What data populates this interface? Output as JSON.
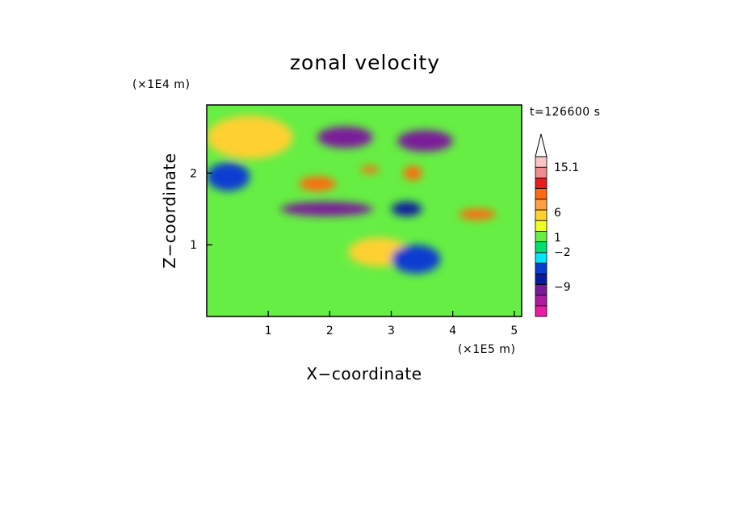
{
  "chart_data": {
    "type": "heatmap",
    "title": "zonal velocity",
    "xlabel": "X−coordinate",
    "ylabel": "Z−coordinate",
    "x_scale_label": "(×1E5 m)",
    "y_scale_label": "(×1E4 m)",
    "time_label": "t=126600 s",
    "xlim": [
      0,
      5.12
    ],
    "ylim": [
      0,
      2.95
    ],
    "x_ticks": [
      "1",
      "2",
      "3",
      "4",
      "5"
    ],
    "x_tick_values": [
      1,
      2,
      3,
      4,
      5
    ],
    "y_ticks": [
      "1",
      "2"
    ],
    "y_tick_values": [
      1,
      2
    ],
    "grid": false,
    "colorbar": {
      "labels": [
        "15.1",
        "6",
        "1",
        "−2",
        "−9"
      ],
      "label_values": [
        15.1,
        6,
        1,
        -2,
        -9
      ],
      "levels": [
        -15,
        -12,
        -9,
        -6,
        -3,
        -2,
        -1,
        0,
        1,
        2,
        4,
        6,
        9,
        12,
        15.1
      ],
      "colors": [
        "#ec1ca4",
        "#b01aa0",
        "#7a1a9a",
        "#0a1aa0",
        "#0a3cd0",
        "#00e6ff",
        "#00e070",
        "#66ee44",
        "#eeff22",
        "#ffd030",
        "#ffa040",
        "#ff6a10",
        "#e81c1c",
        "#f08c8c",
        "#f8c4c4"
      ],
      "extend": "max"
    },
    "bands": [
      {
        "value": 7,
        "x": [
          0.1,
          1.1
        ],
        "z": [
          2.4,
          2.6
        ]
      },
      {
        "value": 3,
        "x": [
          0.0,
          1.4
        ],
        "z": [
          2.2,
          2.8
        ]
      },
      {
        "value": -8,
        "x": [
          1.8,
          2.7
        ],
        "z": [
          2.35,
          2.65
        ]
      },
      {
        "value": -8,
        "x": [
          1.2,
          2.7
        ],
        "z": [
          1.4,
          1.6
        ]
      },
      {
        "value": 7,
        "x": [
          1.5,
          2.1
        ],
        "z": [
          1.75,
          1.95
        ]
      },
      {
        "value": 7,
        "x": [
          2.5,
          2.8
        ],
        "z": [
          2.0,
          2.1
        ]
      },
      {
        "value": -2.5,
        "x": [
          0.0,
          0.7
        ],
        "z": [
          1.75,
          2.15
        ]
      },
      {
        "value": 6,
        "x": [
          3.2,
          3.5
        ],
        "z": [
          1.9,
          2.1
        ]
      },
      {
        "value": -8,
        "x": [
          3.1,
          4.0
        ],
        "z": [
          2.3,
          2.6
        ]
      },
      {
        "value": -5,
        "x": [
          3.0,
          3.5
        ],
        "z": [
          1.4,
          1.6
        ]
      },
      {
        "value": 3,
        "x": [
          2.3,
          3.3
        ],
        "z": [
          0.7,
          1.1
        ]
      },
      {
        "value": 0.5,
        "x": [
          0.0,
          2.5
        ],
        "z": [
          0.0,
          0.9
        ]
      },
      {
        "value": -2.5,
        "x": [
          3.0,
          3.8
        ],
        "z": [
          0.6,
          1.0
        ]
      },
      {
        "value": 6,
        "x": [
          4.1,
          4.7
        ],
        "z": [
          1.35,
          1.5
        ]
      }
    ]
  }
}
